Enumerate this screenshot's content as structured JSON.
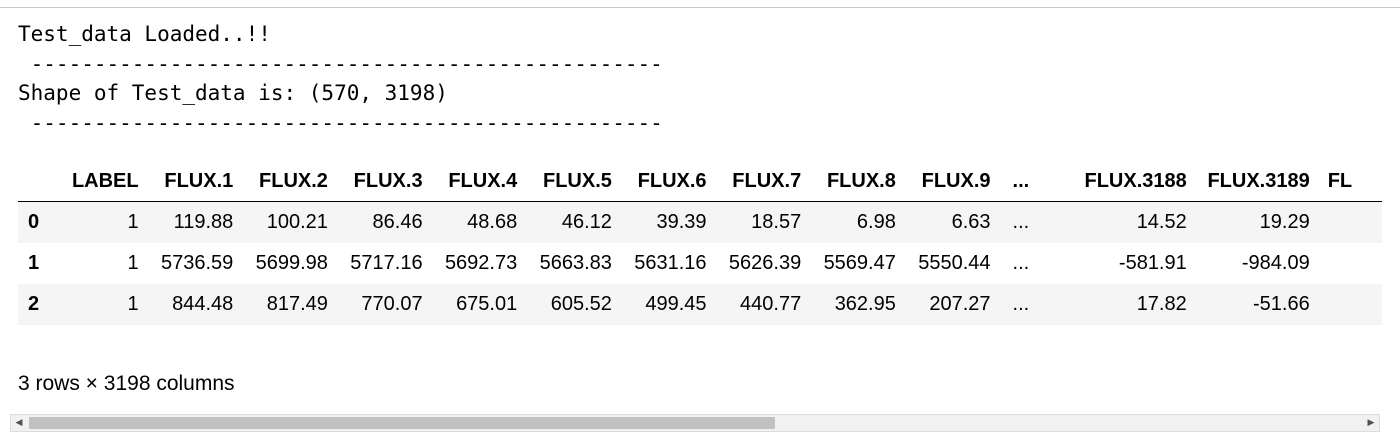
{
  "stream_output": {
    "line1": "Test_data Loaded..!!",
    "sep1": " --------------------------------------------------",
    "line2": "Shape of Test_data is: (570, 3198)",
    "sep2": " --------------------------------------------------"
  },
  "dataframe": {
    "columns": [
      "",
      "LABEL",
      "FLUX.1",
      "FLUX.2",
      "FLUX.3",
      "FLUX.4",
      "FLUX.5",
      "FLUX.6",
      "FLUX.7",
      "FLUX.8",
      "FLUX.9",
      "...",
      "FLUX.3188",
      "FLUX.3189",
      "FL"
    ],
    "rows": [
      {
        "index": "0",
        "cells": [
          "1",
          "119.88",
          "100.21",
          "86.46",
          "48.68",
          "46.12",
          "39.39",
          "18.57",
          "6.98",
          "6.63",
          "...",
          "14.52",
          "19.29",
          ""
        ]
      },
      {
        "index": "1",
        "cells": [
          "1",
          "5736.59",
          "5699.98",
          "5717.16",
          "5692.73",
          "5663.83",
          "5631.16",
          "5626.39",
          "5569.47",
          "5550.44",
          "...",
          "-581.91",
          "-984.09",
          ""
        ]
      },
      {
        "index": "2",
        "cells": [
          "1",
          "844.48",
          "817.49",
          "770.07",
          "675.01",
          "605.52",
          "499.45",
          "440.77",
          "362.95",
          "207.27",
          "...",
          "17.82",
          "-51.66",
          ""
        ]
      }
    ],
    "summary": "3 rows × 3198 columns"
  },
  "scrollbar": {
    "position_fraction": 0,
    "visible_fraction": 0.56,
    "left_icon": "triangle-left-icon",
    "right_icon": "triangle-right-icon"
  }
}
